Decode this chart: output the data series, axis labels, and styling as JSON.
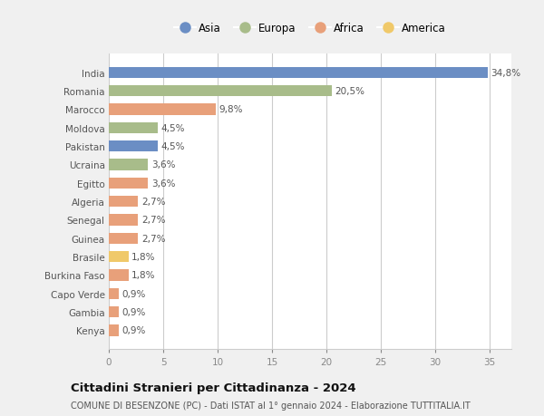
{
  "categories": [
    "India",
    "Romania",
    "Marocco",
    "Moldova",
    "Pakistan",
    "Ucraina",
    "Egitto",
    "Algeria",
    "Senegal",
    "Guinea",
    "Brasile",
    "Burkina Faso",
    "Capo Verde",
    "Gambia",
    "Kenya"
  ],
  "values": [
    34.8,
    20.5,
    9.8,
    4.5,
    4.5,
    3.6,
    3.6,
    2.7,
    2.7,
    2.7,
    1.8,
    1.8,
    0.9,
    0.9,
    0.9
  ],
  "labels": [
    "34,8%",
    "20,5%",
    "9,8%",
    "4,5%",
    "4,5%",
    "3,6%",
    "3,6%",
    "2,7%",
    "2,7%",
    "2,7%",
    "1,8%",
    "1,8%",
    "0,9%",
    "0,9%",
    "0,9%"
  ],
  "colors": [
    "#6b8ec4",
    "#a8bc8a",
    "#e8a07a",
    "#a8bc8a",
    "#6b8ec4",
    "#a8bc8a",
    "#e8a07a",
    "#e8a07a",
    "#e8a07a",
    "#e8a07a",
    "#f0c96a",
    "#e8a07a",
    "#e8a07a",
    "#e8a07a",
    "#e8a07a"
  ],
  "legend_labels": [
    "Asia",
    "Europa",
    "Africa",
    "America"
  ],
  "legend_colors": [
    "#6b8ec4",
    "#a8bc8a",
    "#e8a07a",
    "#f0c96a"
  ],
  "xlim": [
    0,
    37
  ],
  "xticks": [
    0,
    5,
    10,
    15,
    20,
    25,
    30,
    35
  ],
  "title": "Cittadini Stranieri per Cittadinanza - 2024",
  "subtitle": "COMUNE DI BESENZONE (PC) - Dati ISTAT al 1° gennaio 2024 - Elaborazione TUTTITALIA.IT",
  "bg_color": "#f0f0f0",
  "plot_bg_color": "#ffffff",
  "grid_color": "#cccccc"
}
